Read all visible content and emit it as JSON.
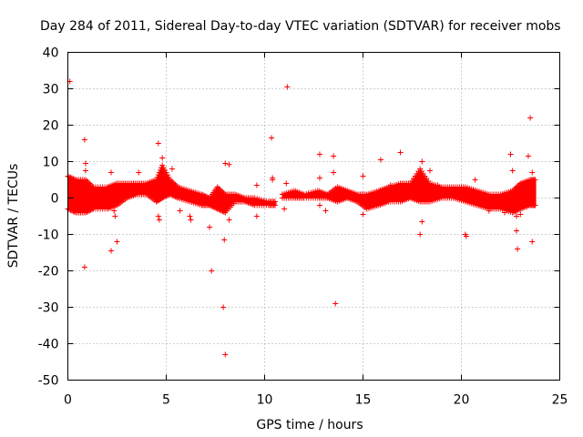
{
  "chart_data": {
    "type": "scatter",
    "title": "Day 284 of 2011, Sidereal Day-to-day VTEC variation (SDTVAR) for receiver mobs",
    "xlabel": "GPS time / hours",
    "ylabel": "SDTVAR / TECUs",
    "xlim": [
      0,
      25
    ],
    "ylim": [
      -50,
      40
    ],
    "xticks": [
      0,
      5,
      10,
      15,
      20,
      25
    ],
    "yticks": [
      -50,
      -40,
      -30,
      -20,
      -10,
      0,
      10,
      20,
      30,
      40
    ],
    "grid": true,
    "marker": "+",
    "color": "#ff0000",
    "series": [
      {
        "name": "SDTVAR",
        "dense_band": [
          {
            "x": 0.0,
            "lo": -3,
            "hi": 6
          },
          {
            "x": 0.4,
            "lo": -4,
            "hi": 5
          },
          {
            "x": 0.9,
            "lo": -4,
            "hi": 5
          },
          {
            "x": 1.3,
            "lo": -3,
            "hi": 3
          },
          {
            "x": 2.0,
            "lo": -3,
            "hi": 3
          },
          {
            "x": 2.5,
            "lo": -2,
            "hi": 4
          },
          {
            "x": 3.0,
            "lo": 0,
            "hi": 4
          },
          {
            "x": 3.5,
            "lo": 1,
            "hi": 4
          },
          {
            "x": 4.0,
            "lo": 1,
            "hi": 4
          },
          {
            "x": 4.5,
            "lo": -1,
            "hi": 5
          },
          {
            "x": 4.8,
            "lo": 0,
            "hi": 9
          },
          {
            "x": 5.2,
            "lo": 1,
            "hi": 5
          },
          {
            "x": 5.6,
            "lo": 0,
            "hi": 3
          },
          {
            "x": 6.2,
            "lo": -1,
            "hi": 2
          },
          {
            "x": 6.8,
            "lo": -2,
            "hi": 1
          },
          {
            "x": 7.2,
            "lo": -2,
            "hi": 0
          },
          {
            "x": 7.6,
            "lo": -3,
            "hi": 3
          },
          {
            "x": 8.0,
            "lo": -4,
            "hi": 1
          },
          {
            "x": 8.5,
            "lo": -1,
            "hi": 1
          },
          {
            "x": 9.0,
            "lo": -1,
            "hi": 0
          },
          {
            "x": 9.5,
            "lo": -2,
            "hi": 0
          },
          {
            "x": 10.2,
            "lo": -2,
            "hi": -1
          },
          {
            "x": 10.6,
            "lo": -2,
            "hi": -1
          }
        ],
        "dense_band_2": [
          {
            "x": 10.9,
            "lo": 0,
            "hi": 1
          },
          {
            "x": 11.5,
            "lo": 0,
            "hi": 2
          },
          {
            "x": 12.0,
            "lo": 0,
            "hi": 1
          },
          {
            "x": 12.7,
            "lo": 0,
            "hi": 2
          },
          {
            "x": 13.2,
            "lo": 0,
            "hi": 1
          },
          {
            "x": 13.7,
            "lo": -1,
            "hi": 3
          },
          {
            "x": 14.2,
            "lo": 0,
            "hi": 2
          },
          {
            "x": 14.7,
            "lo": -1,
            "hi": 1
          },
          {
            "x": 15.2,
            "lo": -3,
            "hi": 1
          },
          {
            "x": 15.8,
            "lo": -2,
            "hi": 2
          },
          {
            "x": 16.3,
            "lo": -1,
            "hi": 3
          },
          {
            "x": 16.9,
            "lo": -1,
            "hi": 4
          },
          {
            "x": 17.4,
            "lo": 0,
            "hi": 4
          },
          {
            "x": 17.9,
            "lo": -1,
            "hi": 8
          },
          {
            "x": 18.4,
            "lo": -1,
            "hi": 4
          },
          {
            "x": 19.0,
            "lo": 0,
            "hi": 3
          },
          {
            "x": 19.6,
            "lo": 0,
            "hi": 3
          },
          {
            "x": 20.2,
            "lo": -1,
            "hi": 3
          },
          {
            "x": 20.8,
            "lo": -2,
            "hi": 2
          },
          {
            "x": 21.4,
            "lo": -3,
            "hi": 1
          },
          {
            "x": 22.0,
            "lo": -3,
            "hi": 1
          },
          {
            "x": 22.6,
            "lo": -4,
            "hi": 2
          },
          {
            "x": 23.0,
            "lo": -3,
            "hi": 4
          },
          {
            "x": 23.5,
            "lo": -2,
            "hi": 5
          },
          {
            "x": 23.8,
            "lo": -2,
            "hi": 5
          }
        ],
        "outliers": [
          {
            "x": 0.1,
            "y": 32
          },
          {
            "x": 0.85,
            "y": 16
          },
          {
            "x": 0.85,
            "y": -19
          },
          {
            "x": 0.9,
            "y": 9.5
          },
          {
            "x": 0.9,
            "y": 7.5
          },
          {
            "x": 2.2,
            "y": -14.5
          },
          {
            "x": 2.5,
            "y": -12
          },
          {
            "x": 2.2,
            "y": 7
          },
          {
            "x": 2.35,
            "y": -3.5
          },
          {
            "x": 2.4,
            "y": -5
          },
          {
            "x": 3.6,
            "y": 7
          },
          {
            "x": 4.6,
            "y": 15
          },
          {
            "x": 4.6,
            "y": -5
          },
          {
            "x": 4.65,
            "y": -6
          },
          {
            "x": 4.8,
            "y": 11
          },
          {
            "x": 5.3,
            "y": 8
          },
          {
            "x": 5.7,
            "y": -3.5
          },
          {
            "x": 6.2,
            "y": -5
          },
          {
            "x": 6.25,
            "y": -6
          },
          {
            "x": 7.2,
            "y": -8
          },
          {
            "x": 7.3,
            "y": -20
          },
          {
            "x": 7.9,
            "y": -30
          },
          {
            "x": 7.95,
            "y": -11.5
          },
          {
            "x": 8.0,
            "y": -43
          },
          {
            "x": 8.0,
            "y": 9.5
          },
          {
            "x": 8.2,
            "y": 9.2
          },
          {
            "x": 8.2,
            "y": -6
          },
          {
            "x": 9.6,
            "y": -5
          },
          {
            "x": 9.6,
            "y": 3.5
          },
          {
            "x": 10.35,
            "y": 16.5
          },
          {
            "x": 10.4,
            "y": 5.5
          },
          {
            "x": 10.4,
            "y": 5.0
          },
          {
            "x": 11.0,
            "y": -3
          },
          {
            "x": 11.15,
            "y": 30.5
          },
          {
            "x": 11.1,
            "y": 4
          },
          {
            "x": 12.8,
            "y": 12
          },
          {
            "x": 12.8,
            "y": 5.5
          },
          {
            "x": 12.8,
            "y": -2
          },
          {
            "x": 13.1,
            "y": -3.5
          },
          {
            "x": 13.5,
            "y": 11.5
          },
          {
            "x": 13.5,
            "y": 7
          },
          {
            "x": 13.6,
            "y": -29
          },
          {
            "x": 14.1,
            "y": 0.5
          },
          {
            "x": 15.0,
            "y": 6
          },
          {
            "x": 15.0,
            "y": -4.5
          },
          {
            "x": 15.9,
            "y": 10.5
          },
          {
            "x": 16.4,
            "y": 3.5
          },
          {
            "x": 16.9,
            "y": 12.5
          },
          {
            "x": 17.7,
            "y": 3.5
          },
          {
            "x": 17.9,
            "y": -10
          },
          {
            "x": 18.0,
            "y": -6.5
          },
          {
            "x": 18.0,
            "y": 10
          },
          {
            "x": 18.4,
            "y": 7.5
          },
          {
            "x": 18.8,
            "y": 3.5
          },
          {
            "x": 20.2,
            "y": -10
          },
          {
            "x": 20.25,
            "y": -10.5
          },
          {
            "x": 20.7,
            "y": 5
          },
          {
            "x": 21.4,
            "y": -3.5
          },
          {
            "x": 22.2,
            "y": -4
          },
          {
            "x": 22.5,
            "y": 12
          },
          {
            "x": 22.6,
            "y": 7.5
          },
          {
            "x": 22.8,
            "y": -5
          },
          {
            "x": 22.8,
            "y": -9
          },
          {
            "x": 22.85,
            "y": -14
          },
          {
            "x": 23.0,
            "y": -4.5
          },
          {
            "x": 23.4,
            "y": 11.5
          },
          {
            "x": 23.5,
            "y": 22
          },
          {
            "x": 23.6,
            "y": -12
          },
          {
            "x": 23.6,
            "y": 7
          }
        ]
      }
    ]
  }
}
